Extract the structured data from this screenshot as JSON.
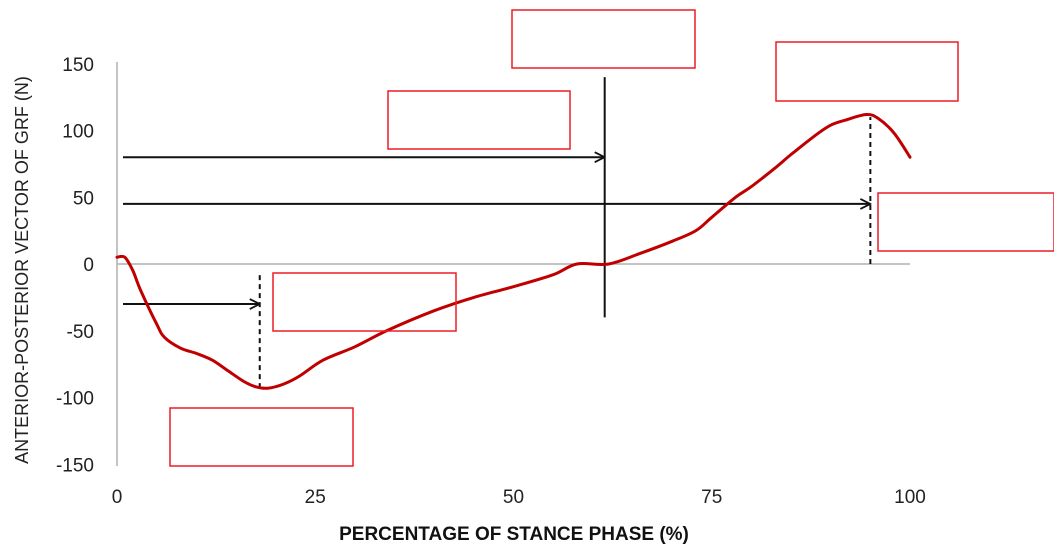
{
  "chart_data": {
    "type": "line",
    "title": "",
    "xlabel": "PERCENTAGE OF STANCE PHASE (%)",
    "ylabel": "ANTERIOR-POSTERIOR VECTOR OF GRF (N)",
    "xlim": [
      0,
      100
    ],
    "ylim": [
      -150,
      150
    ],
    "xticks": [
      0,
      25,
      50,
      75,
      100
    ],
    "yticks": [
      150,
      100,
      50,
      0,
      -50,
      -100,
      -150
    ],
    "grid": false,
    "legend": "none",
    "series": [
      {
        "color": "#c00000",
        "x": [
          0,
          1,
          2,
          3,
          5,
          6,
          8,
          10,
          12,
          14,
          16,
          17.5,
          19,
          21,
          23,
          26,
          30,
          34,
          40,
          45,
          50,
          55,
          58,
          62,
          66,
          70,
          73,
          75,
          78,
          80,
          83,
          85,
          88,
          90,
          92,
          94.5,
          96,
          98,
          100
        ],
        "y": [
          5,
          5,
          -5,
          -20,
          -45,
          -55,
          -63,
          -67,
          -72,
          -80,
          -88,
          -92,
          -93,
          -90,
          -84,
          -72,
          -62,
          -50,
          -35,
          -25,
          -17,
          -8,
          0,
          0,
          8,
          17,
          25,
          35,
          50,
          58,
          72,
          82,
          96,
          104,
          108,
          112,
          109,
          98,
          80
        ]
      }
    ],
    "reference_lines": [
      {
        "kind": "arrow-to",
        "from_x": 0,
        "to_x": 61.5,
        "y": 80,
        "style": "solid"
      },
      {
        "kind": "arrow-to",
        "from_x": 0,
        "to_x": 95,
        "y": 45,
        "style": "solid"
      },
      {
        "kind": "arrow-to",
        "from_x": 0,
        "to_x": 18,
        "y": -30,
        "style": "solid"
      },
      {
        "kind": "vertical",
        "x": 61.5,
        "y_from": -40,
        "y_to": 140,
        "style": "solid"
      },
      {
        "kind": "vertical",
        "x": 95,
        "y_from": 0,
        "y_to": 110,
        "style": "dashed"
      },
      {
        "kind": "vertical",
        "x": 18,
        "y_from": -93,
        "y_to": -6,
        "style": "dashed"
      }
    ],
    "annotation_boxes_count": 7,
    "annotation_box_color": "#ee1c25"
  }
}
